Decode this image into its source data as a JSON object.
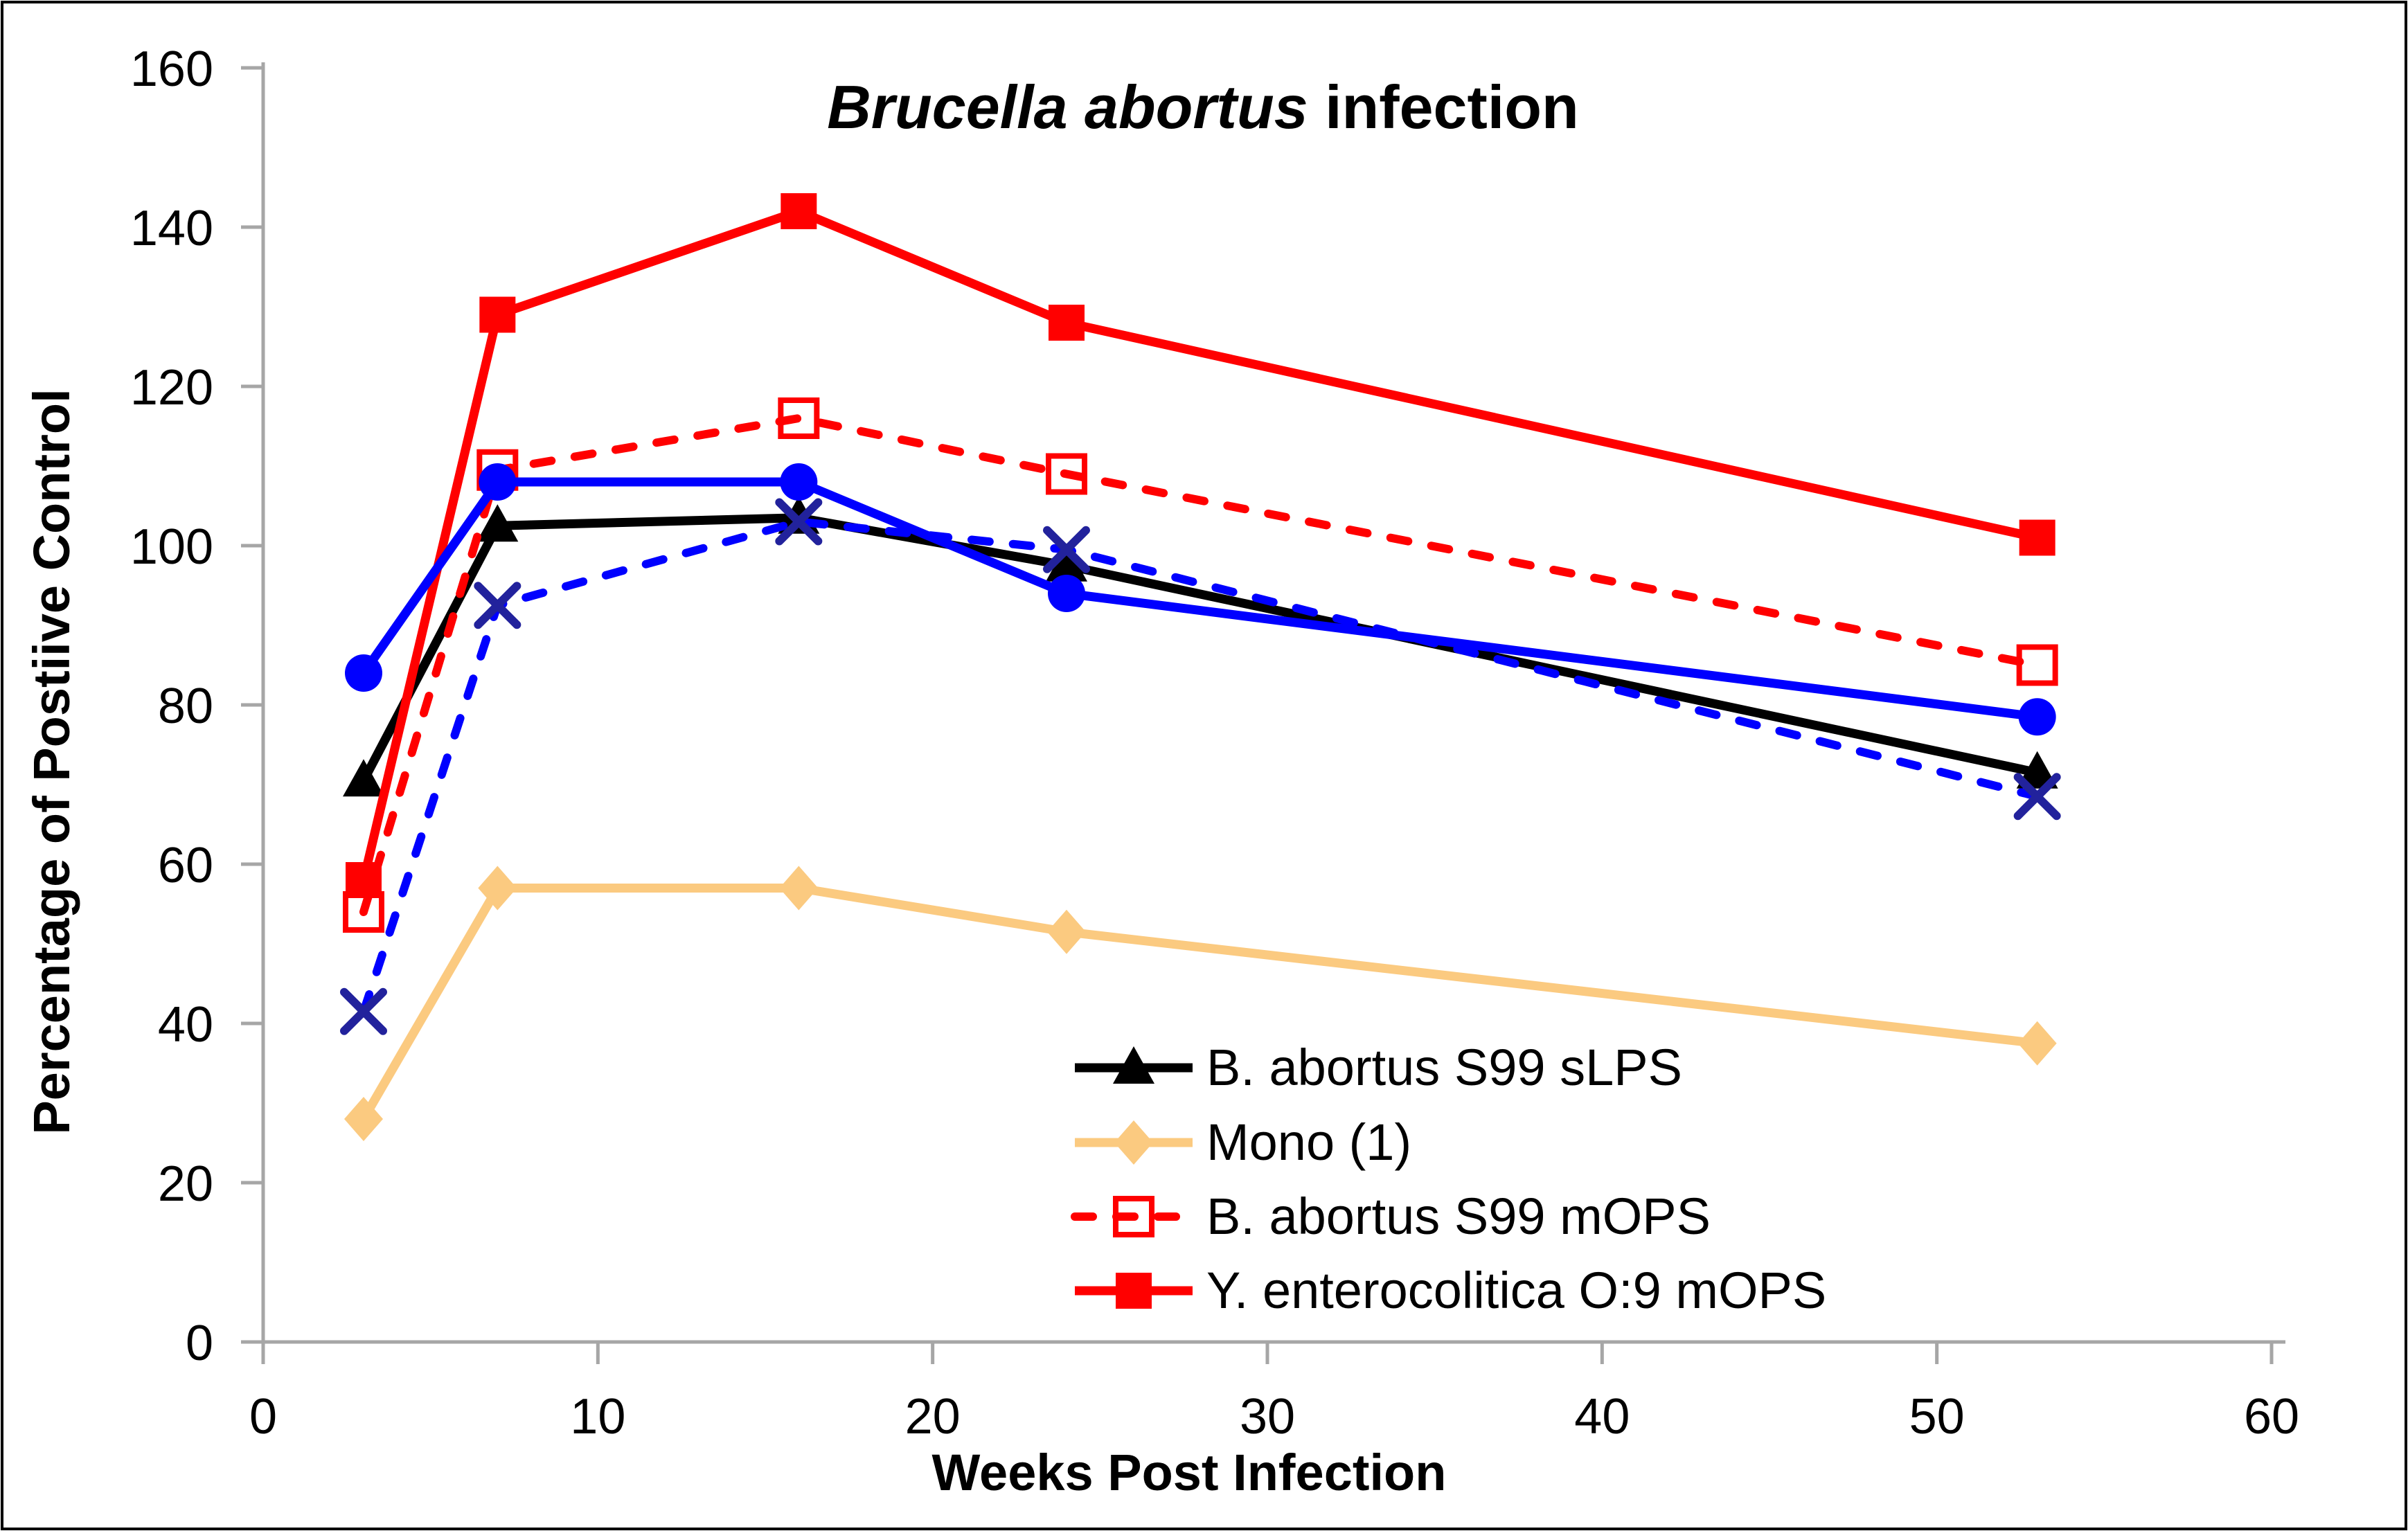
{
  "figure": {
    "title_italic": "Brucella abortus",
    "title_regular": " infection",
    "x_axis_label": "Weeks Post Infection",
    "y_axis_label": "Percentage of Postiive Control"
  },
  "chart_data": {
    "type": "line",
    "title": "Brucella abortus infection",
    "xlabel": "Weeks Post Infection",
    "ylabel": "Percentage of Postiive Control",
    "xlim": [
      0,
      60
    ],
    "ylim": [
      0,
      160
    ],
    "x_ticks": [
      0,
      10,
      20,
      30,
      40,
      50,
      60
    ],
    "y_ticks": [
      0,
      20,
      40,
      60,
      80,
      100,
      120,
      140,
      160
    ],
    "grid": false,
    "legend_position": "inside-bottom-center",
    "axis_color": "#A6A6A6",
    "x": [
      3,
      7,
      16,
      24,
      53
    ],
    "series": [
      {
        "name": "B. abortus S99 sLPS",
        "color": "#000000",
        "line": "solid",
        "marker": "triangle",
        "in_legend": true,
        "values": [
          70.5,
          102.5,
          103.5,
          97.5,
          71.5
        ]
      },
      {
        "name": "Mono (1)",
        "color": "#FBCA80",
        "line": "solid",
        "marker": "diamond",
        "in_legend": true,
        "values": [
          28,
          57,
          57,
          51.5,
          37.5
        ]
      },
      {
        "name": "B. abortus S99 mOPS",
        "color": "#FF0000",
        "line": "dashed",
        "marker": "open-square",
        "in_legend": true,
        "values": [
          54,
          109.5,
          116,
          109,
          85
        ]
      },
      {
        "name": "Y. enterocolitica O:9 mOPS",
        "color": "#FF0000",
        "line": "solid",
        "marker": "square",
        "in_legend": true,
        "values": [
          58,
          129,
          142,
          128,
          101
        ]
      },
      {
        "name": "",
        "color": "#0000FF",
        "line": "solid",
        "marker": "circle",
        "in_legend": false,
        "values": [
          84,
          108,
          108,
          94,
          78.5
        ]
      },
      {
        "name": "",
        "color": "#0000FF",
        "marker_color": "#22229C",
        "line": "dashed",
        "marker": "x",
        "in_legend": false,
        "values": [
          41.5,
          92.5,
          103,
          99.5,
          68.5
        ]
      }
    ]
  }
}
